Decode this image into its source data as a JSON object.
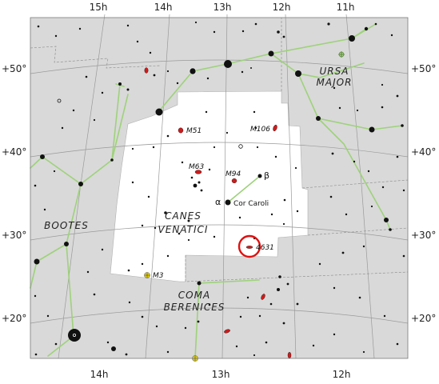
{
  "colors": {
    "background": "#d9d9d9",
    "highlight_area": "#ffffff",
    "constellation_lines": "#9ed27a",
    "galaxy": "#d21a1a",
    "target_circle": "#e01010",
    "cluster": "#e8d200"
  },
  "ra_top": [
    "15h",
    "14h",
    "13h",
    "12h",
    "11h"
  ],
  "ra_bottom": [
    "14h",
    "13h",
    "12h"
  ],
  "dec_left": [
    "+50°",
    "+40°",
    "+30°",
    "+20°"
  ],
  "dec_right": [
    "+50°",
    "+40°",
    "+30°",
    "+20°"
  ],
  "constellations": {
    "ursa_major_1": "URSA",
    "ursa_major_2": "MAJOR",
    "canes_venatici_1": "CANES",
    "canes_venatici_2": "VENATICI",
    "bootes": "BOOTES",
    "coma_1": "COMA",
    "coma_2": "BERENICES"
  },
  "objects": {
    "m51": "M51",
    "m106": "M106",
    "m63": "M63",
    "m94": "M94",
    "ngc4631": "4631",
    "m3": "M3"
  },
  "stars": {
    "beta_greek": "β",
    "alpha_greek": "α",
    "cor_caroli": "Cor Caroli"
  }
}
